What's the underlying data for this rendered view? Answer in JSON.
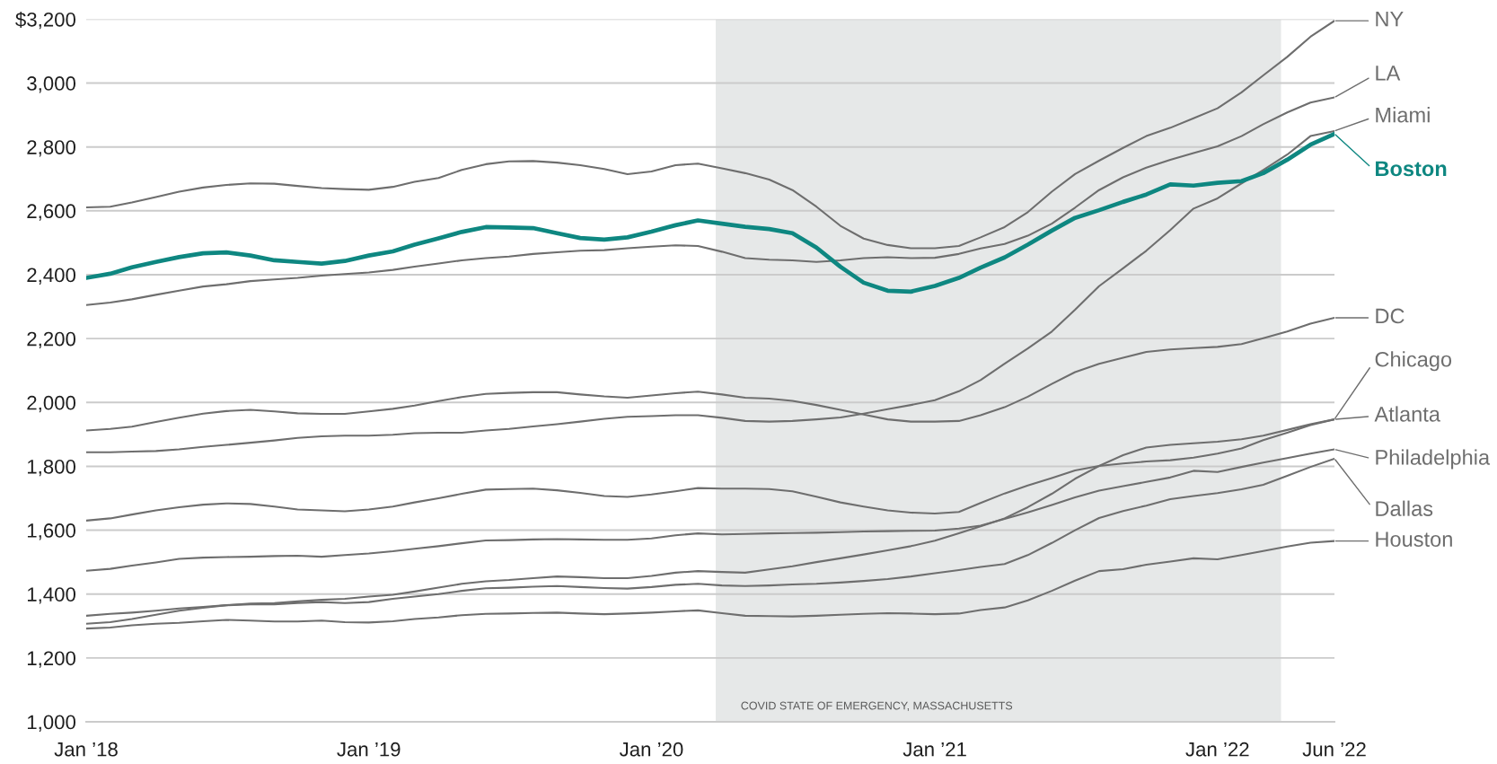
{
  "chart_data": {
    "type": "line",
    "x": [
      "2018-01",
      "2018-02",
      "2018-03",
      "2018-04",
      "2018-05",
      "2018-06",
      "2018-07",
      "2018-08",
      "2018-09",
      "2018-10",
      "2018-11",
      "2018-12",
      "2019-01",
      "2019-02",
      "2019-03",
      "2019-04",
      "2019-05",
      "2019-06",
      "2019-07",
      "2019-08",
      "2019-09",
      "2019-10",
      "2019-11",
      "2019-12",
      "2020-01",
      "2020-02",
      "2020-03",
      "2020-04",
      "2020-05",
      "2020-06",
      "2020-07",
      "2020-08",
      "2020-09",
      "2020-10",
      "2020-11",
      "2020-12",
      "2021-01",
      "2021-02",
      "2021-03",
      "2021-04",
      "2021-05",
      "2021-06",
      "2021-07",
      "2021-08",
      "2021-09",
      "2021-10",
      "2021-11",
      "2021-12",
      "2022-01",
      "2022-02",
      "2022-03",
      "2022-04",
      "2022-05",
      "2022-06"
    ],
    "series": [
      {
        "name": "NY",
        "color": "#6e6e6e",
        "values": [
          2611,
          2613,
          2626,
          2643,
          2660,
          2673,
          2681,
          2686,
          2685,
          2678,
          2671,
          2668,
          2666,
          2675,
          2691,
          2703,
          2728,
          2746,
          2755,
          2756,
          2751,
          2743,
          2731,
          2715,
          2723,
          2743,
          2748,
          2733,
          2718,
          2698,
          2665,
          2613,
          2553,
          2513,
          2493,
          2483,
          2483,
          2490,
          2517,
          2549,
          2596,
          2660,
          2715,
          2757,
          2797,
          2834,
          2860,
          2890,
          2921,
          2971,
          3024,
          3082,
          3145,
          3195
        ]
      },
      {
        "name": "LA",
        "color": "#6e6e6e",
        "values": [
          2305,
          2313,
          2323,
          2337,
          2350,
          2363,
          2370,
          2380,
          2385,
          2390,
          2397,
          2402,
          2407,
          2415,
          2425,
          2435,
          2445,
          2452,
          2457,
          2465,
          2470,
          2475,
          2477,
          2483,
          2488,
          2492,
          2490,
          2472,
          2452,
          2447,
          2445,
          2440,
          2445,
          2452,
          2455,
          2452,
          2453,
          2465,
          2482,
          2496,
          2522,
          2560,
          2610,
          2665,
          2705,
          2735,
          2760,
          2781,
          2802,
          2834,
          2871,
          2908,
          2939,
          2955
        ]
      },
      {
        "name": "Miami",
        "color": "#6e6e6e",
        "values": [
          1844,
          1844,
          1846,
          1848,
          1853,
          1861,
          1867,
          1874,
          1881,
          1889,
          1894,
          1896,
          1896,
          1899,
          1904,
          1905,
          1905,
          1912,
          1917,
          1925,
          1932,
          1940,
          1949,
          1955,
          1957,
          1960,
          1960,
          1952,
          1942,
          1940,
          1942,
          1947,
          1953,
          1965,
          1979,
          1992,
          2007,
          2035,
          2070,
          2121,
          2169,
          2222,
          2290,
          2364,
          2420,
          2475,
          2540,
          2607,
          2639,
          2686,
          2728,
          2776,
          2834,
          2850
        ]
      },
      {
        "name": "Boston",
        "color": "#0e8781",
        "values": [
          2390,
          2403,
          2423,
          2440,
          2455,
          2467,
          2470,
          2460,
          2445,
          2440,
          2435,
          2443,
          2460,
          2473,
          2494,
          2514,
          2534,
          2549,
          2548,
          2546,
          2530,
          2515,
          2510,
          2517,
          2535,
          2555,
          2570,
          2560,
          2550,
          2543,
          2530,
          2485,
          2425,
          2375,
          2350,
          2347,
          2365,
          2390,
          2422,
          2454,
          2494,
          2538,
          2578,
          2602,
          2628,
          2651,
          2683,
          2679,
          2688,
          2693,
          2718,
          2760,
          2807,
          2841
        ]
      },
      {
        "name": "DC",
        "color": "#6e6e6e",
        "values": [
          1912,
          1917,
          1924,
          1939,
          1952,
          1965,
          1973,
          1977,
          1972,
          1966,
          1964,
          1964,
          1972,
          1980,
          1990,
          2004,
          2017,
          2027,
          2030,
          2032,
          2032,
          2025,
          2019,
          2015,
          2022,
          2029,
          2034,
          2025,
          2015,
          2012,
          2005,
          1992,
          1977,
          1962,
          1947,
          1940,
          1940,
          1942,
          1960,
          1985,
          2018,
          2058,
          2095,
          2121,
          2140,
          2158,
          2166,
          2170,
          2174,
          2183,
          2201,
          2222,
          2247,
          2265
        ]
      },
      {
        "name": "Chicago",
        "color": "#6e6e6e",
        "values": [
          1630,
          1637,
          1649,
          1662,
          1672,
          1680,
          1684,
          1682,
          1674,
          1665,
          1662,
          1659,
          1665,
          1674,
          1687,
          1700,
          1714,
          1727,
          1729,
          1730,
          1725,
          1717,
          1707,
          1704,
          1712,
          1722,
          1732,
          1730,
          1730,
          1729,
          1722,
          1705,
          1687,
          1674,
          1662,
          1655,
          1652,
          1657,
          1685,
          1715,
          1740,
          1763,
          1787,
          1801,
          1809,
          1815,
          1819,
          1827,
          1840,
          1856,
          1882,
          1905,
          1929,
          1947
        ]
      },
      {
        "name": "Atlanta",
        "color": "#6e6e6e",
        "values": [
          1307,
          1312,
          1322,
          1335,
          1348,
          1357,
          1365,
          1370,
          1372,
          1377,
          1382,
          1385,
          1392,
          1398,
          1408,
          1420,
          1432,
          1440,
          1444,
          1450,
          1455,
          1453,
          1450,
          1450,
          1457,
          1467,
          1472,
          1469,
          1467,
          1477,
          1487,
          1500,
          1512,
          1524,
          1537,
          1550,
          1567,
          1590,
          1612,
          1637,
          1672,
          1714,
          1761,
          1801,
          1835,
          1859,
          1867,
          1872,
          1877,
          1885,
          1896,
          1914,
          1932,
          1947
        ]
      },
      {
        "name": "Philadelphia",
        "color": "#6e6e6e",
        "values": [
          1473,
          1479,
          1489,
          1499,
          1510,
          1514,
          1516,
          1517,
          1519,
          1520,
          1517,
          1522,
          1527,
          1534,
          1542,
          1550,
          1559,
          1568,
          1569,
          1571,
          1572,
          1571,
          1570,
          1570,
          1574,
          1584,
          1590,
          1587,
          1588,
          1590,
          1591,
          1592,
          1594,
          1596,
          1597,
          1598,
          1599,
          1605,
          1614,
          1635,
          1656,
          1679,
          1703,
          1724,
          1738,
          1751,
          1765,
          1786,
          1782,
          1798,
          1812,
          1826,
          1840,
          1853
        ]
      },
      {
        "name": "Dallas",
        "color": "#6e6e6e",
        "values": [
          1332,
          1338,
          1342,
          1348,
          1355,
          1360,
          1365,
          1368,
          1368,
          1372,
          1375,
          1372,
          1375,
          1385,
          1392,
          1400,
          1410,
          1418,
          1420,
          1423,
          1425,
          1422,
          1419,
          1417,
          1422,
          1429,
          1432,
          1427,
          1425,
          1427,
          1430,
          1432,
          1436,
          1441,
          1447,
          1455,
          1465,
          1475,
          1485,
          1494,
          1522,
          1560,
          1600,
          1638,
          1660,
          1677,
          1697,
          1707,
          1716,
          1728,
          1742,
          1770,
          1798,
          1824
        ]
      },
      {
        "name": "Houston",
        "color": "#6e6e6e",
        "values": [
          1292,
          1295,
          1302,
          1307,
          1310,
          1315,
          1319,
          1317,
          1314,
          1314,
          1317,
          1312,
          1311,
          1315,
          1322,
          1327,
          1334,
          1338,
          1339,
          1341,
          1342,
          1339,
          1337,
          1339,
          1342,
          1346,
          1349,
          1340,
          1332,
          1331,
          1330,
          1332,
          1335,
          1338,
          1340,
          1339,
          1337,
          1339,
          1350,
          1358,
          1380,
          1410,
          1442,
          1472,
          1478,
          1492,
          1502,
          1512,
          1509,
          1522,
          1535,
          1549,
          1561,
          1566
        ]
      }
    ],
    "xlim": [
      "2018-01",
      "2022-06"
    ],
    "xticks": [
      {
        "value": "2018-01",
        "label": "Jan ’18"
      },
      {
        "value": "2019-01",
        "label": "Jan ’19"
      },
      {
        "value": "2020-01",
        "label": "Jan ’20"
      },
      {
        "value": "2021-01",
        "label": "Jan ’21"
      },
      {
        "value": "2022-01",
        "label": "Jan ’22"
      },
      {
        "value": "2022-06",
        "label": "Jun ’22"
      }
    ],
    "ylim": [
      1000,
      3200
    ],
    "yticks": [
      {
        "value": 1000,
        "label": "1,000"
      },
      {
        "value": 1200,
        "label": "1,200"
      },
      {
        "value": 1400,
        "label": "1,400"
      },
      {
        "value": 1600,
        "label": "1,600"
      },
      {
        "value": 1800,
        "label": "1,800"
      },
      {
        "value": 2000,
        "label": "2,000"
      },
      {
        "value": 2200,
        "label": "2,200"
      },
      {
        "value": 2400,
        "label": "2,400"
      },
      {
        "value": 2600,
        "label": "2,600"
      },
      {
        "value": 2800,
        "label": "2,800"
      },
      {
        "value": 3000,
        "label": "3,000"
      },
      {
        "value": 3200,
        "label": "$3,200"
      }
    ],
    "bands": [
      {
        "axis": "x",
        "from": "2020-03-24",
        "to": "2022-03-24",
        "label": "COVID STATE OF EMERGENCY, MASSACHUSETTS",
        "color": "#e6e8e8"
      }
    ],
    "grid": "y",
    "legend": "right"
  }
}
